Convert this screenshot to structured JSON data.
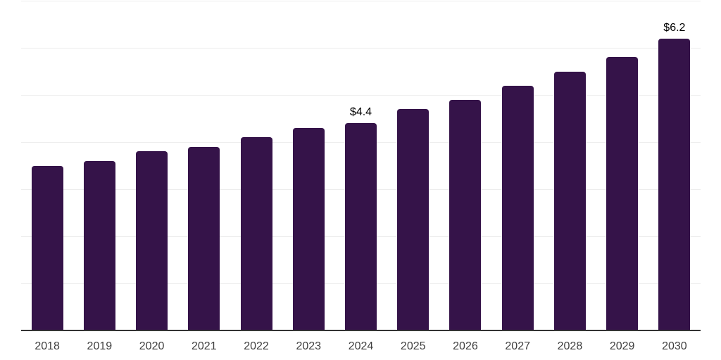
{
  "colors": {
    "background": "#ffffff",
    "bar": "#351349",
    "grid": "#ededed",
    "axis": "#333333",
    "tick_label": "#3e3e3e",
    "value_label": "#000000"
  },
  "chart_data": {
    "type": "bar",
    "categories": [
      "2018",
      "2019",
      "2020",
      "2021",
      "2022",
      "2023",
      "2024",
      "2025",
      "2026",
      "2027",
      "2028",
      "2029",
      "2030"
    ],
    "values": [
      3.5,
      3.6,
      3.8,
      3.9,
      4.1,
      4.3,
      4.4,
      4.7,
      4.9,
      5.2,
      5.5,
      5.8,
      6.2
    ],
    "bar_labels": [
      "",
      "",
      "",
      "",
      "",
      "",
      "$4.4",
      "",
      "",
      "",
      "",
      "",
      "$6.2"
    ],
    "title": "",
    "xlabel": "",
    "ylabel": "",
    "ylim": [
      0,
      7
    ],
    "gridline_step": 1,
    "grid": true,
    "legend": false,
    "y_tick_labels_visible": false
  }
}
